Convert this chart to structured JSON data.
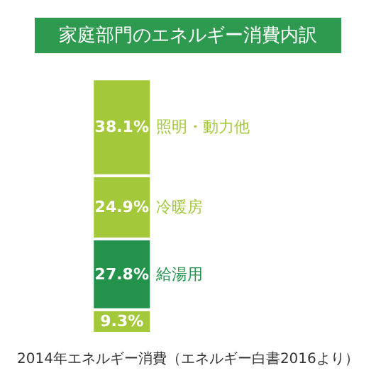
{
  "chart_data": {
    "type": "bar",
    "title": "家庭部門のエネルギー消費内訳",
    "categories": [
      null
    ],
    "stacked": true,
    "legend": false,
    "data_labels": true,
    "series": [
      {
        "color": "#a3c83a",
        "values": [
          9.3
        ],
        "value_labels": [
          "9.3%"
        ]
      },
      {
        "name": "給湯用",
        "color": "#23924a",
        "values": [
          27.8
        ],
        "value_labels": [
          "27.8%"
        ]
      },
      {
        "name": "冷暖房",
        "color": "#a3c83a",
        "values": [
          24.9
        ],
        "value_labels": [
          "24.9%"
        ]
      },
      {
        "name": "照明・動力他",
        "color": "#a3c83a",
        "values": [
          38.1
        ],
        "value_labels": [
          "38.1%"
        ]
      }
    ],
    "annotations": [
      "2014年エネルギー消費（エネルギー白書2016より）"
    ]
  }
}
